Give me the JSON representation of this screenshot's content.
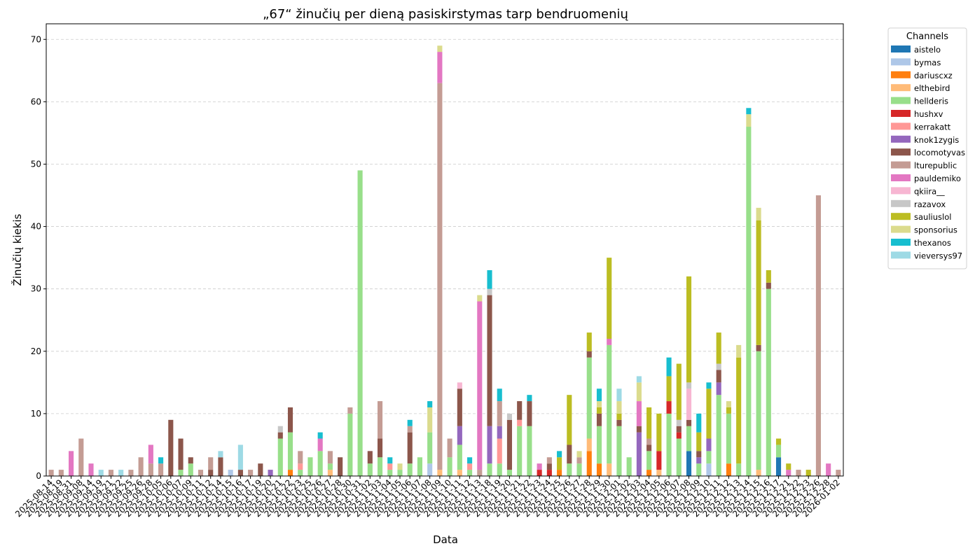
{
  "chart_data": {
    "type": "bar",
    "stacked": true,
    "title": "„67“ žinučių per dieną pasiskirstymas tarp bendruomenių",
    "xlabel": "Data",
    "ylabel": "Žinučių kiekis",
    "ylim": [
      0,
      72.5
    ],
    "yticks": [
      0,
      10,
      20,
      30,
      40,
      50,
      60,
      70
    ],
    "grid": "y-dashed",
    "legend": {
      "title": "Channels",
      "placement": "outside-right-top"
    },
    "series_order": [
      "aistelo",
      "bymas",
      "dariuscxz",
      "elthebird",
      "hellderis",
      "hushxv",
      "kerrakatt",
      "knok1zygis",
      "locomotyvas",
      "lturepublic",
      "pauldemiko",
      "qkiira__",
      "razavox",
      "sauliuslol",
      "sponsorius",
      "thexanos",
      "vieversys97"
    ],
    "colors": {
      "aistelo": "#1f77b4",
      "bymas": "#aec7e8",
      "dariuscxz": "#ff7f0e",
      "elthebird": "#ffbb78",
      "hellderis": "#98df8a",
      "hushxv": "#d62728",
      "kerrakatt": "#ff9896",
      "knok1zygis": "#9467bd",
      "locomotyvas": "#8c564b",
      "lturepublic": "#c49c94",
      "pauldemiko": "#e377c2",
      "qkiira__": "#f7b6d2",
      "razavox": "#c7c7c7",
      "sauliuslol": "#bcbd22",
      "sponsorius": "#dbdb8d",
      "thexanos": "#17becf",
      "vieversys97": "#9edae5"
    },
    "categories": [
      "2025-08-14",
      "2025-08-19",
      "2025-08-31",
      "2025-09-08",
      "2025-09-14",
      "2025-09-19",
      "2025-09-21",
      "2025-09-22",
      "2025-09-25",
      "2025-09-26",
      "2025-09-28",
      "2025-10-05",
      "2025-10-06",
      "2025-10-07",
      "2025-10-09",
      "2025-10-11",
      "2025-10-12",
      "2025-10-14",
      "2025-10-15",
      "2025-10-16",
      "2025-10-17",
      "2025-10-19",
      "2025-10-20",
      "2025-10-21",
      "2025-10-22",
      "2025-10-23",
      "2025-10-25",
      "2025-10-26",
      "2025-10-27",
      "2025-10-28",
      "2025-10-30",
      "2025-10-31",
      "2025-11-02",
      "2025-11-03",
      "2025-11-04",
      "2025-11-05",
      "2025-11-06",
      "2025-11-07",
      "2025-11-08",
      "2025-11-09",
      "2025-11-10",
      "2025-11-11",
      "2025-11-12",
      "2025-11-13",
      "2025-11-18",
      "2025-11-19",
      "2025-11-20",
      "2025-11-21",
      "2025-11-22",
      "2025-11-23",
      "2025-11-24",
      "2025-11-25",
      "2025-11-26",
      "2025-11-27",
      "2025-11-28",
      "2025-11-29",
      "2025-11-30",
      "2025-12-01",
      "2025-12-02",
      "2025-12-03",
      "2025-12-04",
      "2025-12-05",
      "2025-12-06",
      "2025-12-07",
      "2025-12-08",
      "2025-12-09",
      "2025-12-10",
      "2025-12-11",
      "2025-12-12",
      "2025-12-13",
      "2025-12-14",
      "2025-12-15",
      "2025-12-16",
      "2025-12-17",
      "2025-12-21",
      "2025-12-22",
      "2025-12-23",
      "2025-12-26",
      "2025-12-28",
      "2026-01-02"
    ],
    "bars": [
      {
        "lturepublic": 1
      },
      {
        "lturepublic": 1
      },
      {
        "pauldemiko": 4
      },
      {
        "lturepublic": 6
      },
      {
        "pauldemiko": 2
      },
      {
        "vieversys97": 1
      },
      {
        "lturepublic": 1
      },
      {
        "vieversys97": 1
      },
      {
        "lturepublic": 1
      },
      {
        "lturepublic": 3
      },
      {
        "lturepublic": 2,
        "pauldemiko": 3
      },
      {
        "lturepublic": 2,
        "thexanos": 1
      },
      {
        "locomotyvas": 9
      },
      {
        "hellderis": 1,
        "locomotyvas": 5
      },
      {
        "hellderis": 2,
        "locomotyvas": 1
      },
      {
        "lturepublic": 1
      },
      {
        "locomotyvas": 1,
        "lturepublic": 2
      },
      {
        "locomotyvas": 3,
        "vieversys97": 1
      },
      {
        "bymas": 1
      },
      {
        "locomotyvas": 1,
        "vieversys97": 4
      },
      {
        "lturepublic": 1
      },
      {
        "locomotyvas": 2
      },
      {
        "knok1zygis": 1
      },
      {
        "hellderis": 6,
        "locomotyvas": 1,
        "razavox": 1
      },
      {
        "dariuscxz": 1,
        "hellderis": 6,
        "locomotyvas": 4
      },
      {
        "hellderis": 1,
        "kerrakatt": 1,
        "lturepublic": 2
      },
      {
        "hellderis": 3
      },
      {
        "hellderis": 4,
        "pauldemiko": 2,
        "thexanos": 1
      },
      {
        "elthebird": 1,
        "hellderis": 1,
        "lturepublic": 2
      },
      {
        "locomotyvas": 3
      },
      {
        "hellderis": 10,
        "lturepublic": 1
      },
      {
        "hellderis": 49
      },
      {
        "hellderis": 2,
        "locomotyvas": 2
      },
      {
        "hellderis": 3,
        "locomotyvas": 3,
        "lturepublic": 6
      },
      {
        "hellderis": 1,
        "kerrakatt": 1,
        "thexanos": 1
      },
      {
        "hellderis": 1,
        "sponsorius": 1
      },
      {
        "hellderis": 2,
        "locomotyvas": 5,
        "lturepublic": 1,
        "thexanos": 1
      },
      {
        "hellderis": 3
      },
      {
        "bymas": 2,
        "hellderis": 5,
        "sponsorius": 4,
        "thexanos": 1
      },
      {
        "elthebird": 1,
        "lturepublic": 62,
        "pauldemiko": 5,
        "sponsorius": 1
      },
      {
        "hellderis": 3,
        "lturepublic": 3
      },
      {
        "elthebird": 1,
        "hellderis": 4,
        "knok1zygis": 3,
        "locomotyvas": 6,
        "qkiira__": 1
      },
      {
        "hellderis": 1,
        "kerrakatt": 1,
        "thexanos": 1
      },
      {
        "lturepublic": 1,
        "pauldemiko": 27,
        "sponsorius": 1
      },
      {
        "hellderis": 2,
        "knok1zygis": 6,
        "locomotyvas": 21,
        "razavox": 1,
        "thexanos": 3
      },
      {
        "hellderis": 2,
        "kerrakatt": 4,
        "knok1zygis": 2,
        "lturepublic": 4,
        "thexanos": 2
      },
      {
        "hellderis": 1,
        "locomotyvas": 8,
        "razavox": 1
      },
      {
        "hellderis": 8,
        "kerrakatt": 1,
        "locomotyvas": 3
      },
      {
        "hellderis": 8,
        "locomotyvas": 4,
        "thexanos": 1
      },
      {
        "hushxv": 1,
        "pauldemiko": 1
      },
      {
        "hushxv": 1,
        "locomotyvas": 1,
        "lturepublic": 1
      },
      {
        "dariuscxz": 1,
        "sauliuslol": 2,
        "thexanos": 1
      },
      {
        "hellderis": 2,
        "locomotyvas": 3,
        "sauliuslol": 8
      },
      {
        "hellderis": 2,
        "lturepublic": 1,
        "sponsorius": 1
      },
      {
        "dariuscxz": 4,
        "elthebird": 2,
        "hellderis": 13,
        "locomotyvas": 1,
        "sauliuslol": 3
      },
      {
        "dariuscxz": 2,
        "hellderis": 6,
        "locomotyvas": 2,
        "sauliuslol": 1,
        "sponsorius": 1,
        "thexanos": 2
      },
      {
        "elthebird": 2,
        "hellderis": 19,
        "pauldemiko": 1,
        "sauliuslol": 13
      },
      {
        "hellderis": 8,
        "locomotyvas": 1,
        "sauliuslol": 1,
        "sponsorius": 2,
        "vieversys97": 2
      },
      {
        "hellderis": 3
      },
      {
        "knok1zygis": 7,
        "locomotyvas": 1,
        "pauldemiko": 4,
        "sponsorius": 3,
        "vieversys97": 1
      },
      {
        "dariuscxz": 1,
        "hellderis": 3,
        "locomotyvas": 1,
        "lturepublic": 1,
        "sauliuslol": 5
      },
      {
        "elthebird": 1,
        "hushxv": 3,
        "sauliuslol": 6
      },
      {
        "hellderis": 10,
        "hushxv": 2,
        "sauliuslol": 4,
        "thexanos": 3
      },
      {
        "hellderis": 6,
        "hushxv": 1,
        "locomotyvas": 1,
        "razavox": 1,
        "sauliuslol": 9
      },
      {
        "aistelo": 4,
        "hellderis": 4,
        "locomotyvas": 1,
        "qkiira__": 5,
        "razavox": 1,
        "sauliuslol": 17
      },
      {
        "hellderis": 2,
        "knok1zygis": 1,
        "locomotyvas": 1,
        "sauliuslol": 3,
        "thexanos": 3
      },
      {
        "bymas": 2,
        "hellderis": 2,
        "knok1zygis": 2,
        "sauliuslol": 8,
        "thexanos": 1
      },
      {
        "hellderis": 13,
        "knok1zygis": 2,
        "locomotyvas": 2,
        "razavox": 1,
        "sauliuslol": 5
      },
      {
        "dariuscxz": 2,
        "hellderis": 8,
        "sauliuslol": 1,
        "sponsorius": 1
      },
      {
        "hellderis": 2,
        "sauliuslol": 17,
        "sponsorius": 2
      },
      {
        "hellderis": 56,
        "sponsorius": 2,
        "thexanos": 1
      },
      {
        "elthebird": 1,
        "hellderis": 19,
        "locomotyvas": 1,
        "sauliuslol": 20,
        "sponsorius": 2
      },
      {
        "hellderis": 30,
        "locomotyvas": 1,
        "sauliuslol": 2
      },
      {
        "aistelo": 3,
        "hellderis": 2,
        "sauliuslol": 1
      },
      {
        "pauldemiko": 1,
        "sauliuslol": 1
      },
      {
        "lturepublic": 1
      },
      {
        "sauliuslol": 1
      },
      {
        "lturepublic": 45
      },
      {
        "pauldemiko": 2
      },
      {
        "lturepublic": 1
      }
    ]
  }
}
